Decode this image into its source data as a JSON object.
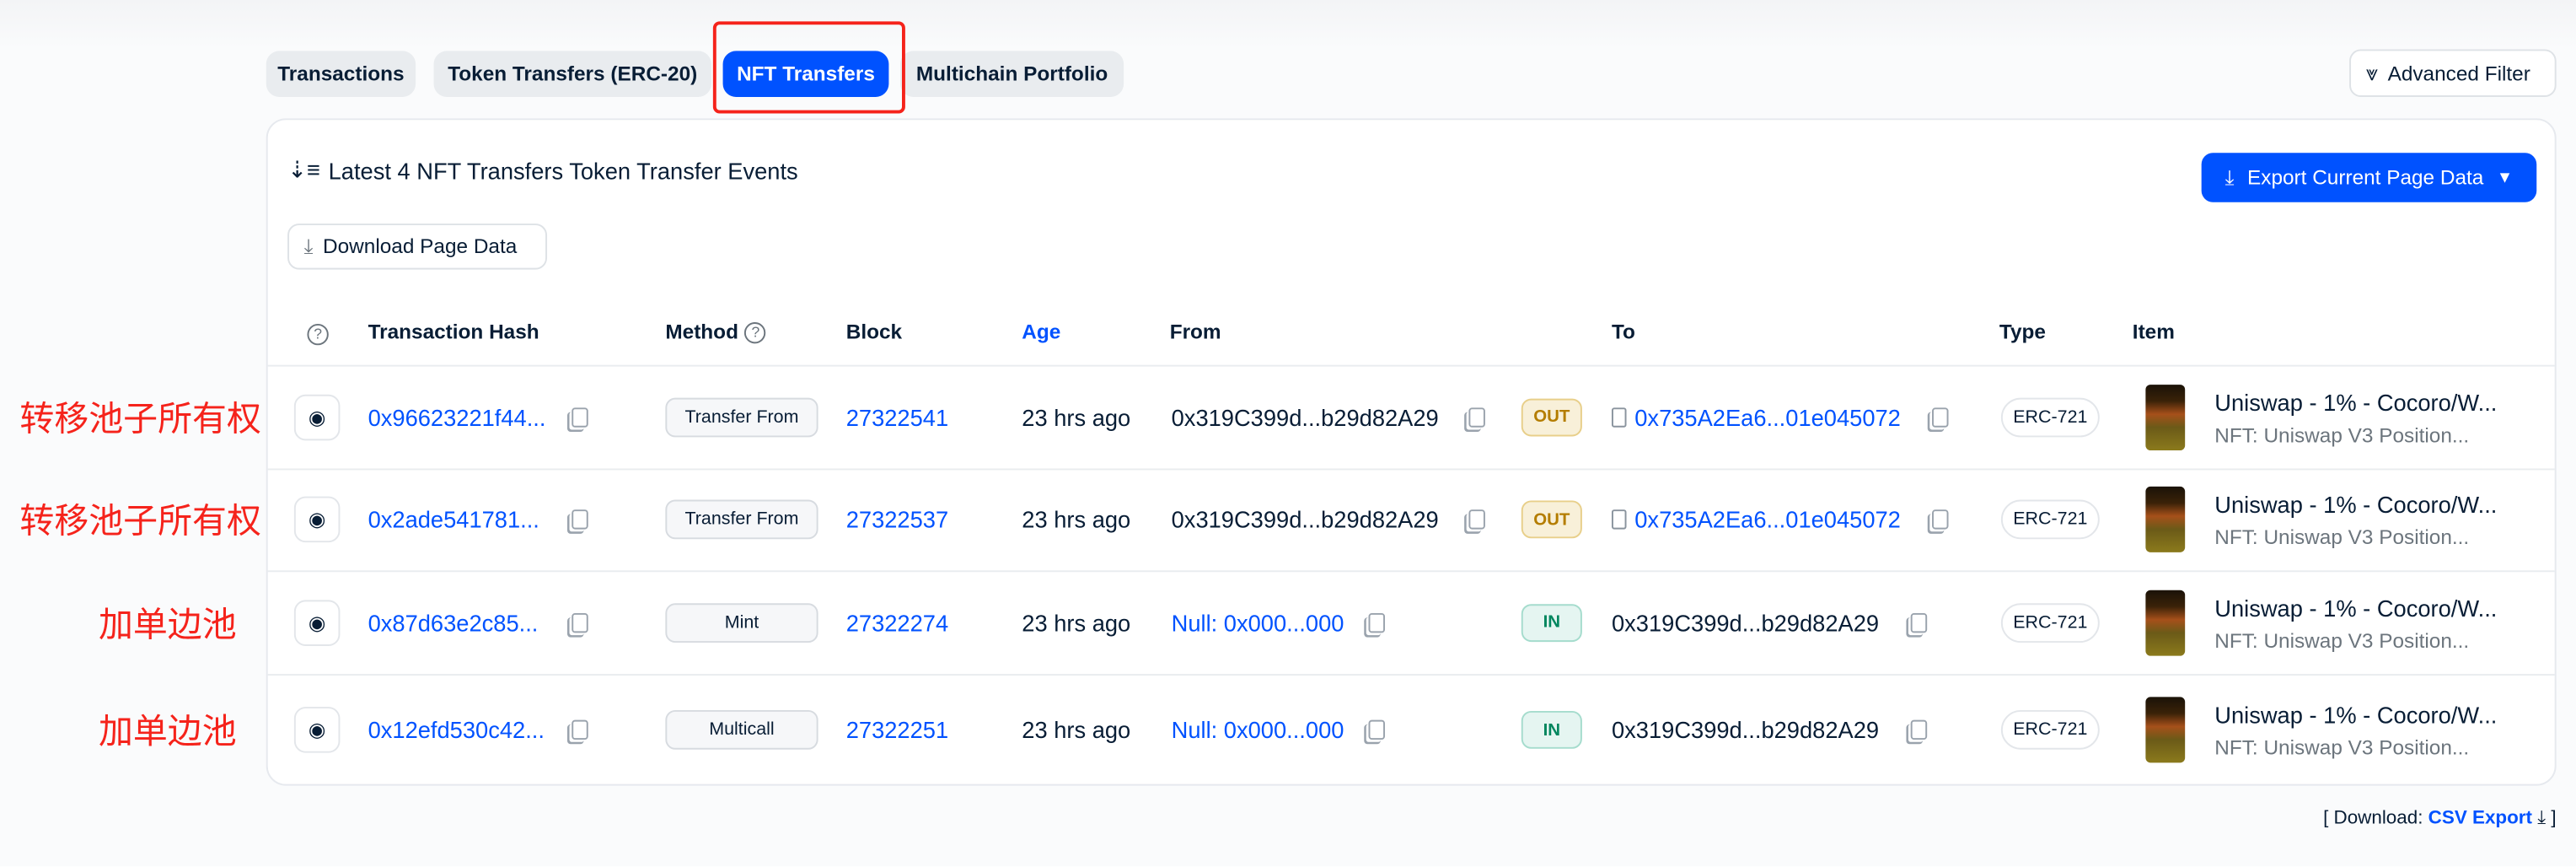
{
  "tabs": [
    {
      "label": "Transactions",
      "active": false
    },
    {
      "label": "Token Transfers (ERC-20)",
      "active": false
    },
    {
      "label": "NFT Transfers",
      "active": true
    },
    {
      "label": "Multichain Portfolio",
      "active": false
    }
  ],
  "advanced_filter_label": "Advanced Filter",
  "card": {
    "title": "Latest 4 NFT Transfers Token Transfer Events",
    "export_label": "Export Current Page Data",
    "download_label": "Download Page Data"
  },
  "columns": {
    "hash": "Transaction Hash",
    "method": "Method",
    "block": "Block",
    "age": "Age",
    "from": "From",
    "to": "To",
    "type": "Type",
    "item": "Item"
  },
  "rows": [
    {
      "annotation": "转移池子所有权",
      "hash": "0x96623221f44...",
      "method": "Transfer From",
      "block": "27322541",
      "age": "23 hrs ago",
      "from": "0x319C399d...b29d82A29",
      "from_link": false,
      "direction": "OUT",
      "to": "0x735A2Ea6...01e045072",
      "to_link": true,
      "type": "ERC-721",
      "item_title": "Uniswap - 1% - Cocoro/W...",
      "item_sub": "NFT: Uniswap V3 Position..."
    },
    {
      "annotation": "转移池子所有权",
      "hash": "0x2ade541781...",
      "method": "Transfer From",
      "block": "27322537",
      "age": "23 hrs ago",
      "from": "0x319C399d...b29d82A29",
      "from_link": false,
      "direction": "OUT",
      "to": "0x735A2Ea6...01e045072",
      "to_link": true,
      "type": "ERC-721",
      "item_title": "Uniswap - 1% - Cocoro/W...",
      "item_sub": "NFT: Uniswap V3 Position..."
    },
    {
      "annotation": "加单边池",
      "hash": "0x87d63e2c85...",
      "method": "Mint",
      "block": "27322274",
      "age": "23 hrs ago",
      "from": "Null: 0x000...000",
      "from_link": true,
      "direction": "IN",
      "to": "0x319C399d...b29d82A29",
      "to_link": false,
      "type": "ERC-721",
      "item_title": "Uniswap - 1% - Cocoro/W...",
      "item_sub": "NFT: Uniswap V3 Position..."
    },
    {
      "annotation": "加单边池",
      "hash": "0x12efd530c42...",
      "method": "Multicall",
      "block": "27322251",
      "age": "23 hrs ago",
      "from": "Null: 0x000...000",
      "from_link": true,
      "direction": "IN",
      "to": "0x319C399d...b29d82A29",
      "to_link": false,
      "type": "ERC-721",
      "item_title": "Uniswap - 1% - Cocoro/W...",
      "item_sub": "NFT: Uniswap V3 Position..."
    }
  ],
  "footer": {
    "prefix": "[ Download:",
    "link": "CSV Export",
    "suffix": "]"
  },
  "colors": {
    "accent": "#0052ff",
    "annotation": "#f5231b"
  }
}
